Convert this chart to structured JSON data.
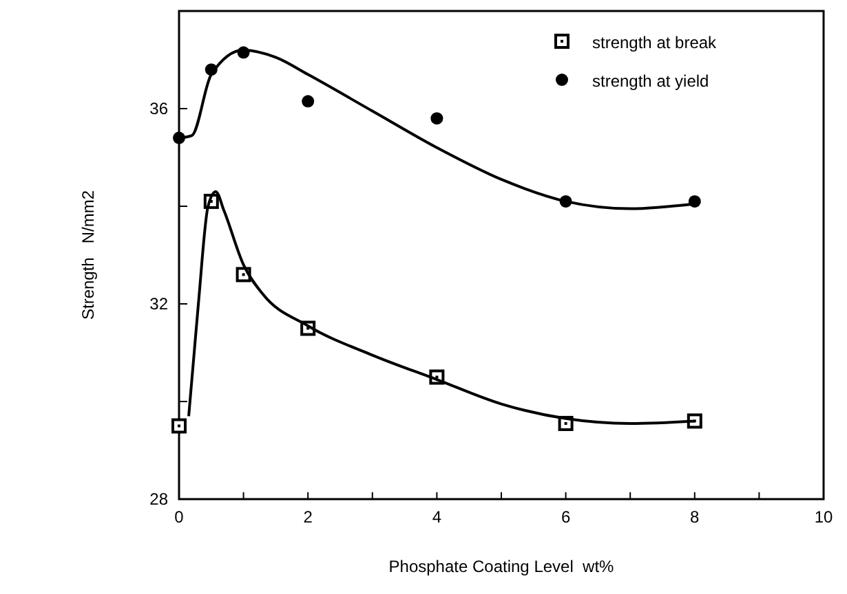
{
  "chart_data": {
    "type": "scatter",
    "xlabel": "Phosphate Coating Level  wt%",
    "ylabel": "Strength   N/mm2",
    "xlim": [
      0,
      10
    ],
    "ylim": [
      28,
      38
    ],
    "xticks": [
      0,
      {
        "value": 1,
        "label": null
      },
      2,
      {
        "value": 3,
        "label": null
      },
      4,
      {
        "value": 5,
        "label": null
      },
      6,
      {
        "value": 7,
        "label": null
      },
      8,
      {
        "value": 9,
        "label": null
      },
      10
    ],
    "yticks": [
      28,
      {
        "value": 30,
        "label": null
      },
      32,
      {
        "value": 34,
        "label": null
      },
      36
    ],
    "grid": false,
    "legend": "top right",
    "series": [
      {
        "name": "strength at break",
        "marker": "square",
        "color": "#000000",
        "x": [
          0,
          0.5,
          1,
          2,
          4,
          6,
          8
        ],
        "values": [
          29.5,
          34.1,
          32.6,
          31.5,
          30.5,
          29.55,
          29.6
        ]
      },
      {
        "name": "strength at yield",
        "marker": "circle",
        "color": "#000000",
        "x": [
          0,
          0.5,
          1,
          2,
          4,
          6,
          8
        ],
        "values": [
          35.4,
          36.8,
          37.15,
          36.15,
          35.8,
          34.1,
          34.1
        ]
      },
      {
        "type": "line",
        "marker": "none",
        "color": "#000000",
        "x": [
          0.15,
          0.3,
          0.45,
          0.57,
          0.7,
          1,
          1.3,
          2,
          3,
          4,
          5,
          6,
          7,
          8
        ],
        "values": [
          29.7,
          32,
          34,
          34.3,
          33.9,
          32.8,
          32.2,
          31.55,
          30.95,
          30.45,
          29.95,
          29.65,
          29.55,
          29.6
        ]
      },
      {
        "type": "line",
        "marker": "none",
        "color": "#000000",
        "x": [
          0,
          0.2,
          0.5,
          1,
          1.5,
          2,
          3,
          4,
          5,
          6,
          7,
          8
        ],
        "values": [
          35.4,
          35.45,
          36.7,
          37.2,
          37.05,
          36.7,
          35.95,
          35.2,
          34.55,
          34.1,
          33.95,
          34.05
        ]
      }
    ]
  }
}
